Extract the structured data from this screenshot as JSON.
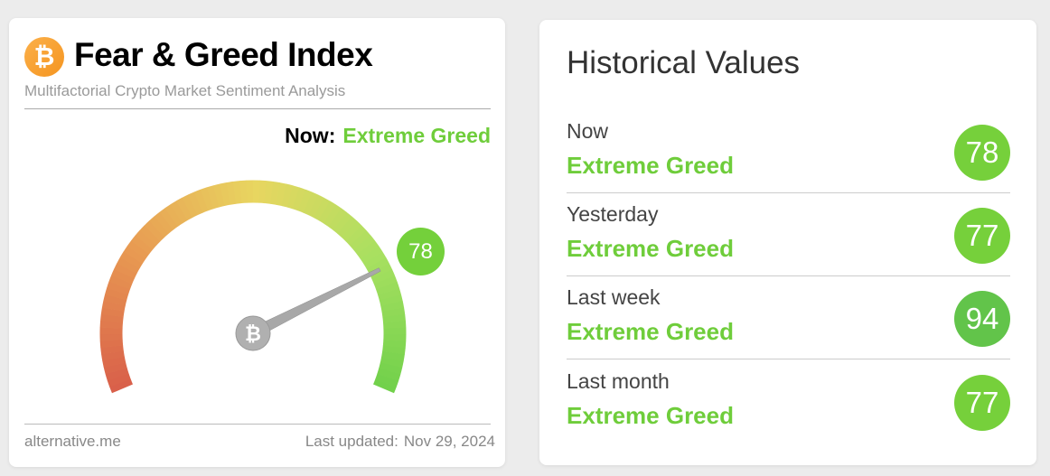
{
  "left_card": {
    "logo_icon": "bitcoin-icon",
    "title": "Fear & Greed Index",
    "subtitle": "Multifactorial Crypto Market Sentiment Analysis",
    "now_label": "Now:",
    "now_status": "Extreme Greed",
    "gauge": {
      "value": 78,
      "min": 0,
      "max": 100,
      "badge": "78",
      "colors": [
        "#d9604a",
        "#e89a52",
        "#e8d660",
        "#a8e060",
        "#6fd04a"
      ]
    },
    "footer_source": "alternative.me",
    "footer_updated_label": "Last updated:",
    "footer_updated_date": "Nov 29, 2024"
  },
  "right_card": {
    "title": "Historical Values",
    "rows": [
      {
        "label": "Now",
        "status": "Extreme Greed",
        "value": "78",
        "color": "#76d03b"
      },
      {
        "label": "Yesterday",
        "status": "Extreme Greed",
        "value": "77",
        "color": "#76d03b"
      },
      {
        "label": "Last week",
        "status": "Extreme Greed",
        "value": "94",
        "color": "#62c44a"
      },
      {
        "label": "Last month",
        "status": "Extreme Greed",
        "value": "77",
        "color": "#76d03b"
      }
    ]
  },
  "accent_green": "#6fcd3b"
}
